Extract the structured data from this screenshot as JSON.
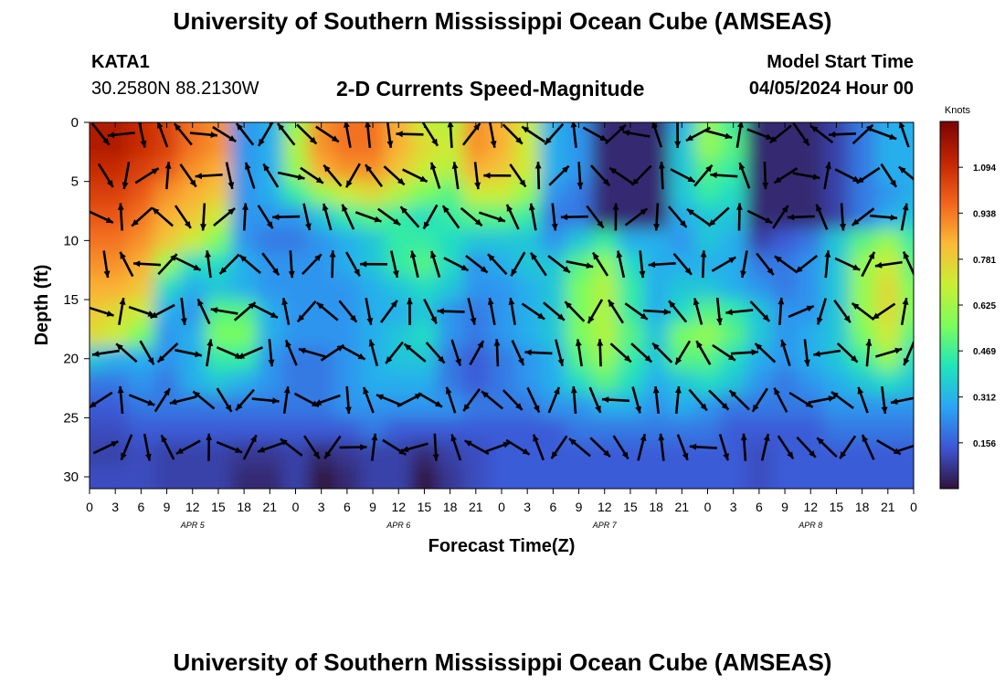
{
  "header": {
    "title": "University of Southern Mississippi Ocean Cube (AMSEAS)",
    "station": "KATA1",
    "coords": "30.2580N  88.2130W",
    "subtitle": "2-D Currents Speed-Magnitude",
    "model_start_label": "Model Start Time",
    "model_start_value": "04/05/2024 Hour 00"
  },
  "footer": {
    "title": "University of Southern Mississippi Ocean Cube (AMSEAS)"
  },
  "chart_data": {
    "type": "heatmap",
    "title": "2-D Currents Speed-Magnitude",
    "xlabel": "Forecast Time(Z)",
    "ylabel": "Depth (ft)",
    "xlim_hours": [
      0,
      96
    ],
    "ylim": [
      0,
      31
    ],
    "x_ticks": [
      {
        "hour": 0,
        "label": "0"
      },
      {
        "hour": 3,
        "label": "3"
      },
      {
        "hour": 6,
        "label": "6"
      },
      {
        "hour": 9,
        "label": "9"
      },
      {
        "hour": 12,
        "label": "12"
      },
      {
        "hour": 15,
        "label": "15"
      },
      {
        "hour": 18,
        "label": "18"
      },
      {
        "hour": 21,
        "label": "21"
      },
      {
        "hour": 24,
        "label": "0"
      },
      {
        "hour": 27,
        "label": "3"
      },
      {
        "hour": 30,
        "label": "6"
      },
      {
        "hour": 33,
        "label": "9"
      },
      {
        "hour": 36,
        "label": "12"
      },
      {
        "hour": 39,
        "label": "15"
      },
      {
        "hour": 42,
        "label": "18"
      },
      {
        "hour": 45,
        "label": "21"
      },
      {
        "hour": 48,
        "label": "0"
      },
      {
        "hour": 51,
        "label": "3"
      },
      {
        "hour": 54,
        "label": "6"
      },
      {
        "hour": 57,
        "label": "9"
      },
      {
        "hour": 60,
        "label": "12"
      },
      {
        "hour": 63,
        "label": "15"
      },
      {
        "hour": 66,
        "label": "18"
      },
      {
        "hour": 69,
        "label": "21"
      },
      {
        "hour": 72,
        "label": "0"
      },
      {
        "hour": 75,
        "label": "3"
      },
      {
        "hour": 78,
        "label": "6"
      },
      {
        "hour": 81,
        "label": "9"
      },
      {
        "hour": 84,
        "label": "12"
      },
      {
        "hour": 87,
        "label": "15"
      },
      {
        "hour": 90,
        "label": "18"
      },
      {
        "hour": 93,
        "label": "21"
      },
      {
        "hour": 96,
        "label": "0"
      }
    ],
    "day_labels": [
      {
        "hour": 12,
        "label": "APR 5"
      },
      {
        "hour": 36,
        "label": "APR 6"
      },
      {
        "hour": 60,
        "label": "APR 7"
      },
      {
        "hour": 84,
        "label": "APR 8"
      }
    ],
    "y_ticks": [
      0,
      5,
      10,
      15,
      20,
      25,
      30
    ],
    "colorbar": {
      "unit": "Knots",
      "min": 0,
      "max": 1.25,
      "ticks": [
        1.094,
        0.938,
        0.781,
        0.625,
        0.469,
        0.312,
        0.156
      ],
      "colors": [
        "#30123b",
        "#3d56d4",
        "#2aa5f5",
        "#1fe5bb",
        "#7cfd5b",
        "#c8ef34",
        "#fbba38",
        "#f2641c",
        "#c42503",
        "#7a0403"
      ]
    },
    "speed_depth_rows_ft": [
      0,
      2,
      4,
      6,
      8,
      10,
      12,
      14,
      16,
      18,
      20,
      22,
      24,
      26,
      28,
      30
    ],
    "speed_time_cols_hours": [
      0,
      3,
      6,
      9,
      12,
      15,
      18,
      21,
      24,
      27,
      30,
      33,
      36,
      39,
      42,
      45,
      48,
      51,
      54,
      57,
      60,
      63,
      66,
      69,
      72,
      75,
      78,
      81,
      84,
      87,
      90,
      93,
      96
    ],
    "speed_knots": [
      [
        1.15,
        1.15,
        1.1,
        1.05,
        0.95,
        0.9,
        0.25,
        0.3,
        0.6,
        0.9,
        0.95,
        0.95,
        0.85,
        0.7,
        0.65,
        0.9,
        0.85,
        0.7,
        0.3,
        0.25,
        0.05,
        0.05,
        0.05,
        0.3,
        0.6,
        0.45,
        0.05,
        0.05,
        0.05,
        0.1,
        0.2,
        0.3,
        0.3
      ],
      [
        1.15,
        1.15,
        1.1,
        1.05,
        0.95,
        0.9,
        0.25,
        0.3,
        0.65,
        0.9,
        0.95,
        0.95,
        0.85,
        0.75,
        0.7,
        0.9,
        0.85,
        0.7,
        0.3,
        0.25,
        0.05,
        0.05,
        0.05,
        0.35,
        0.6,
        0.5,
        0.05,
        0.05,
        0.05,
        0.1,
        0.2,
        0.3,
        0.3
      ],
      [
        1.1,
        1.1,
        1.05,
        1.0,
        0.9,
        0.85,
        0.25,
        0.3,
        0.6,
        0.85,
        0.9,
        0.9,
        0.8,
        0.7,
        0.65,
        0.85,
        0.8,
        0.7,
        0.3,
        0.25,
        0.05,
        0.05,
        0.05,
        0.35,
        0.5,
        0.45,
        0.05,
        0.05,
        0.05,
        0.1,
        0.2,
        0.3,
        0.3
      ],
      [
        1.05,
        1.05,
        1.0,
        0.9,
        0.85,
        0.8,
        0.25,
        0.3,
        0.45,
        0.6,
        0.7,
        0.75,
        0.65,
        0.55,
        0.5,
        0.7,
        0.7,
        0.6,
        0.25,
        0.2,
        0.05,
        0.05,
        0.05,
        0.35,
        0.45,
        0.4,
        0.05,
        0.05,
        0.05,
        0.1,
        0.2,
        0.25,
        0.3
      ],
      [
        1.0,
        1.0,
        0.95,
        0.85,
        0.8,
        0.7,
        0.25,
        0.25,
        0.25,
        0.35,
        0.45,
        0.5,
        0.45,
        0.4,
        0.45,
        0.5,
        0.5,
        0.45,
        0.2,
        0.2,
        0.05,
        0.05,
        0.05,
        0.3,
        0.35,
        0.35,
        0.05,
        0.05,
        0.05,
        0.1,
        0.2,
        0.3,
        0.35
      ],
      [
        0.95,
        0.95,
        0.9,
        0.8,
        0.7,
        0.55,
        0.25,
        0.2,
        0.2,
        0.25,
        0.3,
        0.35,
        0.45,
        0.45,
        0.4,
        0.35,
        0.35,
        0.35,
        0.25,
        0.35,
        0.45,
        0.3,
        0.3,
        0.25,
        0.35,
        0.3,
        0.1,
        0.15,
        0.2,
        0.35,
        0.5,
        0.6,
        0.45
      ],
      [
        0.9,
        0.9,
        0.85,
        0.6,
        0.4,
        0.4,
        0.3,
        0.25,
        0.25,
        0.25,
        0.3,
        0.35,
        0.45,
        0.5,
        0.4,
        0.25,
        0.3,
        0.35,
        0.35,
        0.5,
        0.6,
        0.4,
        0.3,
        0.3,
        0.3,
        0.3,
        0.2,
        0.2,
        0.25,
        0.35,
        0.6,
        0.7,
        0.5
      ],
      [
        0.85,
        0.85,
        0.8,
        0.4,
        0.3,
        0.35,
        0.3,
        0.25,
        0.25,
        0.25,
        0.25,
        0.3,
        0.35,
        0.4,
        0.35,
        0.25,
        0.25,
        0.3,
        0.35,
        0.55,
        0.65,
        0.45,
        0.3,
        0.35,
        0.35,
        0.3,
        0.25,
        0.2,
        0.25,
        0.35,
        0.6,
        0.75,
        0.55
      ],
      [
        0.8,
        0.75,
        0.7,
        0.3,
        0.25,
        0.5,
        0.5,
        0.3,
        0.25,
        0.25,
        0.25,
        0.3,
        0.3,
        0.35,
        0.25,
        0.2,
        0.25,
        0.3,
        0.35,
        0.55,
        0.65,
        0.45,
        0.3,
        0.4,
        0.5,
        0.45,
        0.35,
        0.25,
        0.25,
        0.35,
        0.6,
        0.75,
        0.55
      ],
      [
        0.75,
        0.7,
        0.55,
        0.25,
        0.3,
        0.55,
        0.55,
        0.3,
        0.25,
        0.25,
        0.25,
        0.3,
        0.35,
        0.4,
        0.25,
        0.2,
        0.25,
        0.3,
        0.35,
        0.55,
        0.65,
        0.5,
        0.35,
        0.55,
        0.6,
        0.5,
        0.35,
        0.25,
        0.3,
        0.35,
        0.55,
        0.7,
        0.5
      ],
      [
        0.35,
        0.3,
        0.3,
        0.25,
        0.3,
        0.45,
        0.45,
        0.25,
        0.2,
        0.2,
        0.25,
        0.3,
        0.35,
        0.35,
        0.2,
        0.15,
        0.2,
        0.25,
        0.3,
        0.5,
        0.6,
        0.45,
        0.35,
        0.5,
        0.5,
        0.4,
        0.3,
        0.25,
        0.3,
        0.35,
        0.45,
        0.6,
        0.4
      ],
      [
        0.2,
        0.2,
        0.25,
        0.2,
        0.3,
        0.35,
        0.3,
        0.25,
        0.2,
        0.2,
        0.25,
        0.3,
        0.3,
        0.3,
        0.2,
        0.15,
        0.2,
        0.25,
        0.3,
        0.4,
        0.5,
        0.4,
        0.3,
        0.35,
        0.4,
        0.35,
        0.25,
        0.2,
        0.25,
        0.3,
        0.35,
        0.4,
        0.35
      ],
      [
        0.15,
        0.15,
        0.2,
        0.2,
        0.2,
        0.2,
        0.2,
        0.2,
        0.2,
        0.2,
        0.25,
        0.25,
        0.25,
        0.25,
        0.25,
        0.2,
        0.2,
        0.2,
        0.25,
        0.25,
        0.3,
        0.3,
        0.25,
        0.3,
        0.25,
        0.2,
        0.2,
        0.2,
        0.2,
        0.25,
        0.25,
        0.25,
        0.25
      ],
      [
        0.12,
        0.12,
        0.15,
        0.15,
        0.15,
        0.15,
        0.15,
        0.15,
        0.15,
        0.15,
        0.15,
        0.2,
        0.15,
        0.15,
        0.15,
        0.15,
        0.15,
        0.15,
        0.15,
        0.2,
        0.2,
        0.2,
        0.2,
        0.2,
        0.2,
        0.15,
        0.15,
        0.15,
        0.15,
        0.2,
        0.2,
        0.2,
        0.2
      ],
      [
        0.1,
        0.1,
        0.12,
        0.1,
        0.1,
        0.1,
        0.08,
        0.08,
        0.1,
        0.05,
        0.08,
        0.1,
        0.1,
        0.05,
        0.1,
        0.12,
        0.15,
        0.15,
        0.15,
        0.15,
        0.15,
        0.15,
        0.15,
        0.15,
        0.15,
        0.15,
        0.12,
        0.15,
        0.15,
        0.15,
        0.15,
        0.15,
        0.15
      ],
      [
        0.12,
        0.12,
        0.12,
        0.1,
        0.1,
        0.1,
        0.05,
        0.05,
        0.1,
        0.0,
        0.05,
        0.1,
        0.1,
        0.0,
        0.08,
        0.12,
        0.15,
        0.15,
        0.15,
        0.15,
        0.15,
        0.15,
        0.15,
        0.15,
        0.15,
        0.15,
        0.12,
        0.15,
        0.15,
        0.15,
        0.15,
        0.15,
        0.15
      ]
    ]
  }
}
